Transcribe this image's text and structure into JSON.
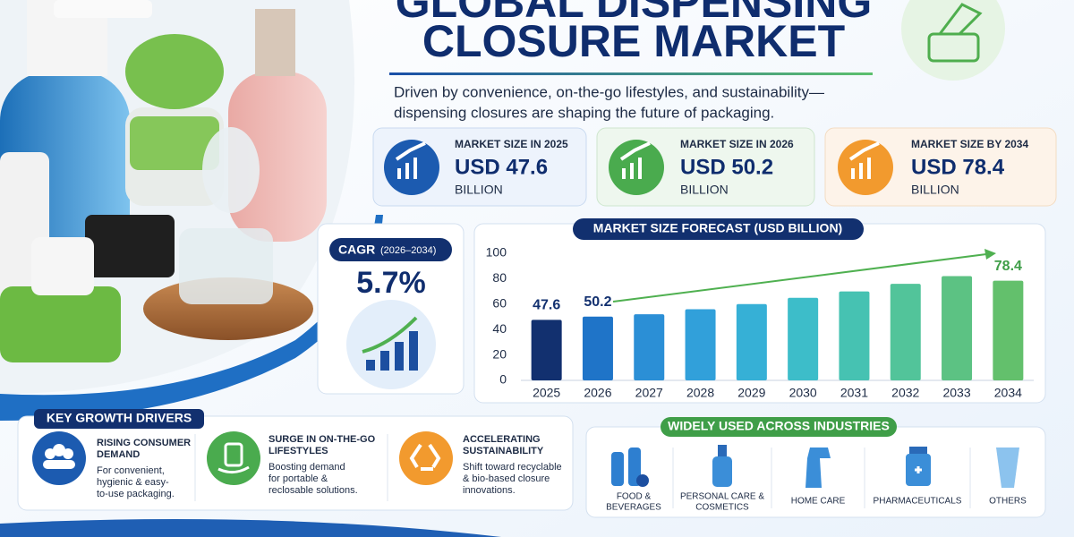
{
  "header": {
    "title_lines": [
      "GLOBAL DISPENSING",
      "CLOSURE MARKET"
    ],
    "subtitle_lines": [
      "Driven by convenience, on-the-go lifestyles, and sustainability—",
      "dispensing closures are shaping the future of packaging."
    ]
  },
  "stats": [
    {
      "label": "MARKET SIZE IN 2025",
      "value": "USD 47.6",
      "unit": "BILLION"
    },
    {
      "label": "MARKET SIZE IN 2026",
      "value": "USD 50.2",
      "unit": "BILLION"
    },
    {
      "label": "MARKET SIZE BY 2034",
      "value": "USD 78.4",
      "unit": "BILLION"
    }
  ],
  "cagr": {
    "label": "CAGR",
    "period": "(2026–2034)",
    "value": "5.7%"
  },
  "chart_data": {
    "type": "bar",
    "title": "MARKET SIZE FORECAST (USD BILLION)",
    "categories": [
      "2025",
      "2026",
      "2027",
      "2028",
      "2029",
      "2030",
      "2031",
      "2032",
      "2033",
      "2034"
    ],
    "values": [
      47.6,
      50.2,
      52,
      56,
      60,
      65,
      70,
      76,
      82,
      78.4
    ],
    "value_labels": [
      "47.6",
      "50.2",
      null,
      null,
      null,
      null,
      null,
      null,
      null,
      "78.4"
    ],
    "colors": [
      "#12306f",
      "#1f74c8",
      "#2b8fd6",
      "#31a0da",
      "#36b0d6",
      "#3dbdc9",
      "#46c2b2",
      "#52c49a",
      "#5cc283",
      "#63c06c"
    ],
    "ylim": [
      0,
      100
    ],
    "yticks": [
      0,
      20,
      40,
      60,
      80,
      100
    ],
    "grid": false
  },
  "drivers": {
    "title": "KEY GROWTH DRIVERS",
    "items": [
      {
        "title_lines": [
          "RISING CONSUMER",
          "DEMAND"
        ],
        "desc_lines": [
          "For convenient,",
          "hygienic & easy-",
          "to-use packaging."
        ]
      },
      {
        "title_lines": [
          "SURGE IN ON-THE-GO",
          "LIFESTYLES"
        ],
        "desc_lines": [
          "Boosting demand",
          "for portable &",
          "reclosable solutions."
        ]
      },
      {
        "title_lines": [
          "ACCELERATING",
          "SUSTAINABILITY"
        ],
        "desc_lines": [
          "Shift toward recyclable",
          "& bio-based closure",
          "innovations."
        ]
      }
    ]
  },
  "industries": {
    "title": "WIDELY USED ACROSS INDUSTRIES",
    "items": [
      [
        "FOOD &",
        "BEVERAGES"
      ],
      [
        "PERSONAL CARE &",
        "COSMETICS"
      ],
      [
        "HOME CARE"
      ],
      [
        "PHARMACEUTICALS"
      ],
      [
        "OTHERS"
      ]
    ]
  }
}
